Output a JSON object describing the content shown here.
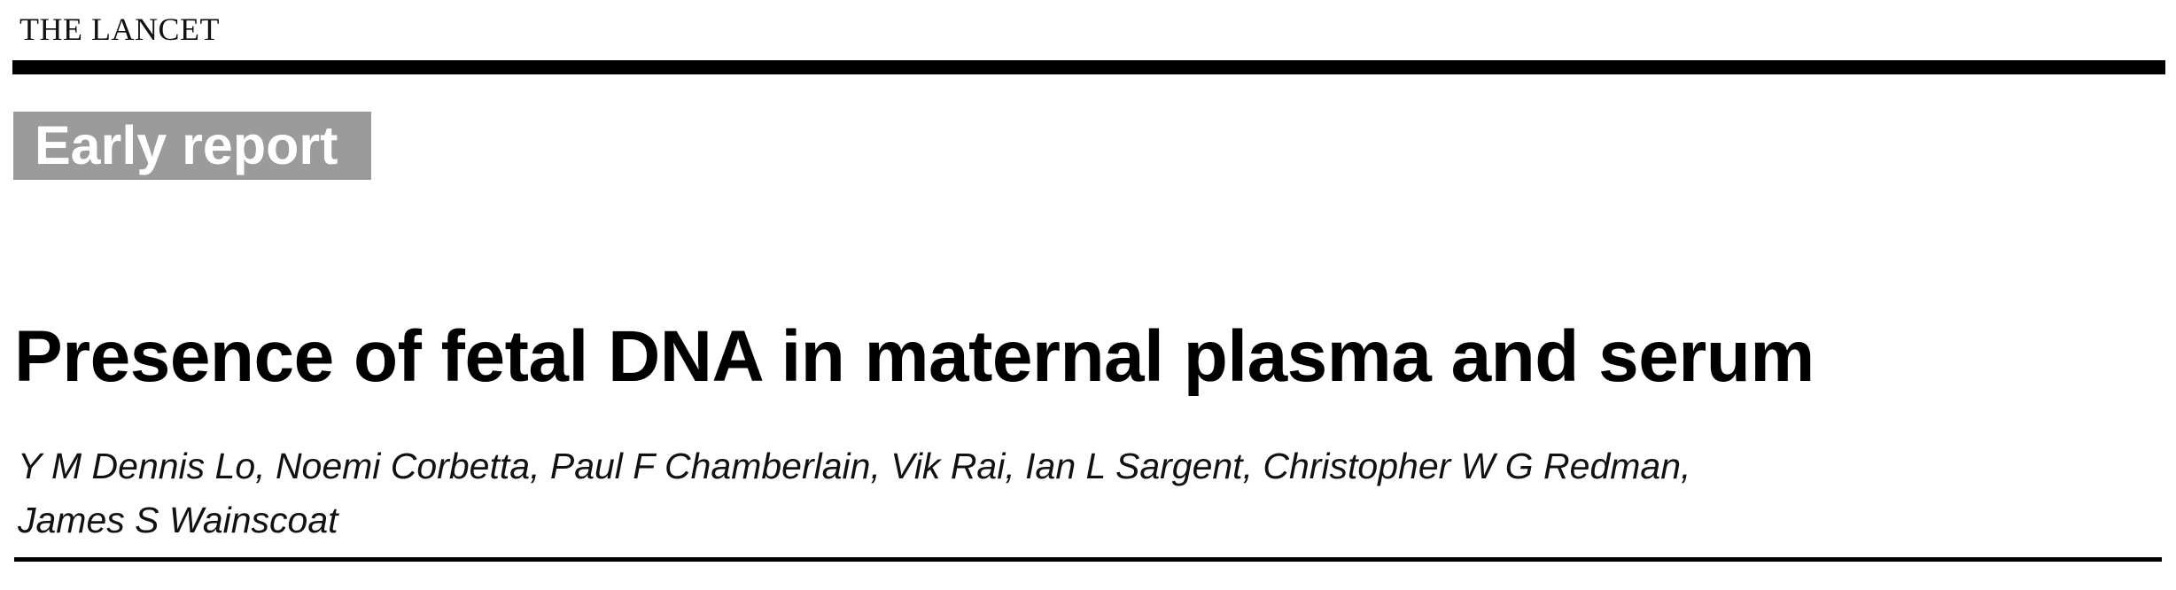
{
  "header": {
    "journal": "THE LANCET"
  },
  "article": {
    "section": "Early report",
    "title": "Presence of fetal DNA in maternal plasma and serum",
    "authors": {
      "line1": "Y M Dennis Lo, Noemi Corbetta, Paul F Chamberlain, Vik Rai, Ian L Sargent, Christopher W G Redman,",
      "line2": "James S Wainscoat"
    }
  }
}
